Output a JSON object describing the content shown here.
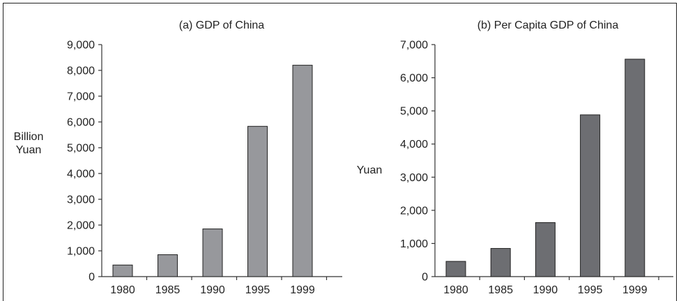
{
  "chart_data": [
    {
      "type": "bar",
      "title": "(a) GDP of China",
      "ylabel_lines": [
        "Billion",
        "Yuan"
      ],
      "xlabel": "",
      "categories": [
        "1980",
        "1985",
        "1990",
        "1995",
        "1999"
      ],
      "values": [
        450,
        850,
        1850,
        5830,
        8200
      ],
      "ylim": [
        0,
        9000
      ],
      "yticks": [
        0,
        1000,
        2000,
        3000,
        4000,
        5000,
        6000,
        7000,
        8000,
        9000
      ],
      "ytick_labels": [
        "0",
        "1,000",
        "2,000",
        "3,000",
        "4,000",
        "5,000",
        "6,000",
        "7,000",
        "8,000",
        "9,000"
      ],
      "bar_color": "#97989c",
      "grid": false,
      "legend": "none"
    },
    {
      "type": "bar",
      "title": "(b) Per Capita GDP of China",
      "ylabel_lines": [
        "Yuan"
      ],
      "xlabel": "",
      "categories": [
        "1980",
        "1985",
        "1990",
        "1995",
        "1999"
      ],
      "values": [
        460,
        850,
        1630,
        4880,
        6560
      ],
      "ylim": [
        0,
        7000
      ],
      "yticks": [
        0,
        1000,
        2000,
        3000,
        4000,
        5000,
        6000,
        7000
      ],
      "ytick_labels": [
        "0",
        "1,000",
        "2,000",
        "3,000",
        "4,000",
        "5,000",
        "6,000",
        "7,000"
      ],
      "bar_color": "#6d6e72",
      "grid": false,
      "legend": "none"
    }
  ]
}
